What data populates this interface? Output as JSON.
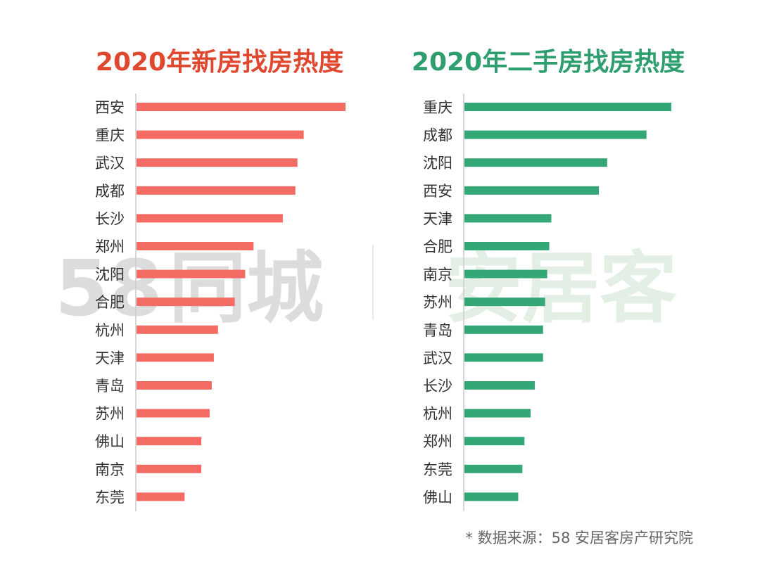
{
  "colors": {
    "left_bar": "#f36b63",
    "right_bar": "#33a876",
    "left_title": "#e0472f",
    "right_title": "#2f9e6f",
    "axis": "#cccccc",
    "label": "#333333",
    "watermark_58": "#dcdcdc",
    "watermark_anjuke": "#e3efe5"
  },
  "watermark": {
    "left_number": "58",
    "left_text": "同城",
    "right_text": "安居客"
  },
  "source": "* 数据来源：58 安居客房产研究院",
  "chart_data": [
    {
      "type": "bar",
      "orientation": "horizontal",
      "title": "2020年新房找房热度",
      "categories": [
        "西安",
        "重庆",
        "武汉",
        "成都",
        "长沙",
        "郑州",
        "沈阳",
        "合肥",
        "杭州",
        "天津",
        "青岛",
        "苏州",
        "佛山",
        "南京",
        "东莞"
      ],
      "values": [
        100,
        80,
        77,
        76,
        70,
        56,
        52,
        47,
        39,
        37,
        36,
        35,
        31,
        31,
        23
      ],
      "xlim": [
        0,
        100
      ]
    },
    {
      "type": "bar",
      "orientation": "horizontal",
      "title": "2020年二手房找房热度",
      "categories": [
        "重庆",
        "成都",
        "沈阳",
        "西安",
        "天津",
        "合肥",
        "南京",
        "苏州",
        "青岛",
        "武汉",
        "长沙",
        "杭州",
        "郑州",
        "东莞",
        "佛山"
      ],
      "values": [
        100,
        88,
        69,
        65,
        42,
        41,
        40,
        39,
        38,
        38,
        34,
        32,
        29,
        28,
        26
      ],
      "xlim": [
        0,
        100
      ]
    }
  ]
}
